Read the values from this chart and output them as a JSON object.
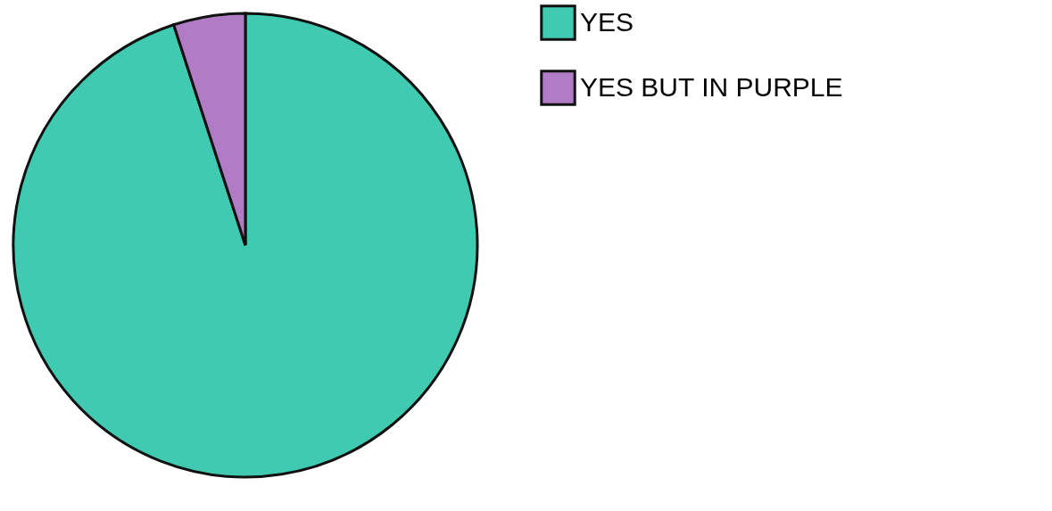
{
  "chart_data": {
    "type": "pie",
    "categories": [
      "YES",
      "YES BUT IN PURPLE"
    ],
    "values": [
      95,
      5
    ],
    "colors": [
      "#3fcab1",
      "#b07cc6"
    ],
    "legend": "right"
  }
}
